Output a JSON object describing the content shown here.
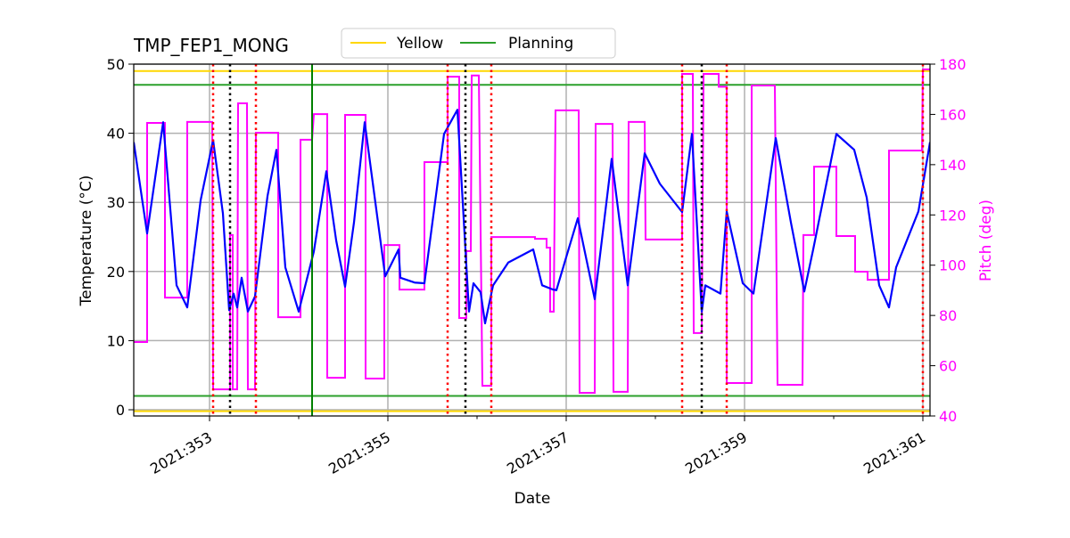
{
  "chart_data": {
    "type": "line",
    "title": "TMP_FEP1_MONG",
    "xlabel": "Date",
    "ylabel": "Temperature ($^\\circ$C)",
    "ylabel_display": "Temperature (°C)",
    "y2label": "Pitch (deg)",
    "xlim": [
      352.15,
      361.08
    ],
    "ylim": [
      -0.9,
      50
    ],
    "y2lim": [
      40,
      180
    ],
    "x_ticks": [
      353,
      355,
      357,
      359,
      361
    ],
    "x_tick_labels": [
      "2021:353",
      "2021:355",
      "2021:357",
      "2021:359",
      "2021:361"
    ],
    "x_minor_ticks": [
      354,
      356,
      358,
      360
    ],
    "y_ticks": [
      0,
      10,
      20,
      30,
      40,
      50
    ],
    "y_tick_labels": [
      "0",
      "10",
      "20",
      "30",
      "40",
      "50"
    ],
    "y2_ticks": [
      40,
      60,
      80,
      100,
      120,
      140,
      160,
      180
    ],
    "y2_tick_labels": [
      "40",
      "60",
      "80",
      "100",
      "120",
      "140",
      "160",
      "180"
    ],
    "grid": true,
    "legend": {
      "placement": "top-center",
      "entries": [
        {
          "label": "Yellow",
          "color": "#ffd700"
        },
        {
          "label": "Planning",
          "color": "#2ca02c"
        }
      ]
    },
    "colors": {
      "temperature": "#0000ff",
      "pitch": "#ff00ff",
      "yellow": "#ffd700",
      "planning": "#2ca02c",
      "event_red": "#ff0000",
      "event_black": "#000000",
      "event_green": "#008000",
      "grid": "#b0b0b0",
      "y2_axis": "#ff00ff"
    },
    "limits": {
      "yellow": [
        49,
        -0.2
      ],
      "planning": [
        47,
        2
      ]
    },
    "vertical_lines": {
      "red_dotted": [
        353.04,
        353.52,
        355.67,
        356.16,
        358.3,
        358.8,
        361.0
      ],
      "black_dotted": [
        353.23,
        355.87,
        358.52
      ],
      "green_solid": [
        354.15
      ]
    },
    "series": [
      {
        "axis": "left",
        "x": [
          352.15,
          352.3,
          352.48,
          352.63,
          352.75,
          352.9,
          353.04,
          353.15,
          353.22,
          353.27,
          353.31,
          353.36,
          353.43,
          353.51,
          353.65,
          353.75,
          353.85,
          354.0,
          354.17,
          354.31,
          354.42,
          354.52,
          354.62,
          354.74,
          354.97,
          355.12,
          355.14,
          355.3,
          355.41,
          355.63,
          355.78,
          355.91,
          355.96,
          356.04,
          356.09,
          356.18,
          356.35,
          356.63,
          356.73,
          356.85,
          356.89,
          357.13,
          357.32,
          357.51,
          357.69,
          357.88,
          358.05,
          358.3,
          358.41,
          358.52,
          358.56,
          358.73,
          358.8,
          358.98,
          359.1,
          359.35,
          359.52,
          359.67,
          359.77,
          360.03,
          360.23,
          360.37,
          360.51,
          360.62,
          360.7,
          360.95,
          361.08
        ],
        "y": [
          38.7,
          25.5,
          41.6,
          18.0,
          14.8,
          30.3,
          39.0,
          28.4,
          14.4,
          16.8,
          14.8,
          19.1,
          14.2,
          16.4,
          30.9,
          37.6,
          20.6,
          14.2,
          22.9,
          34.5,
          24.5,
          17.8,
          27.1,
          41.6,
          19.3,
          23.2,
          19.1,
          18.4,
          18.3,
          39.9,
          43.4,
          14.2,
          18.3,
          17.0,
          12.5,
          18.0,
          21.3,
          23.2,
          18.0,
          17.4,
          17.3,
          27.7,
          16.0,
          36.3,
          18.0,
          37.1,
          32.7,
          28.6,
          39.9,
          14.2,
          18.0,
          16.8,
          28.7,
          18.3,
          16.8,
          39.3,
          27.1,
          17.1,
          23.2,
          39.9,
          37.6,
          30.7,
          18.0,
          14.8,
          20.6,
          28.7,
          38.7
        ]
      },
      {
        "axis": "right",
        "steps": [
          [
            352.15,
            352.3,
            69.4
          ],
          [
            352.3,
            352.5,
            156.6
          ],
          [
            352.5,
            352.75,
            87.1
          ],
          [
            352.75,
            353.03,
            157
          ],
          [
            353.04,
            353.23,
            50.6
          ],
          [
            353.23,
            353.26,
            112
          ],
          [
            353.26,
            353.31,
            50.6
          ],
          [
            353.32,
            353.42,
            164.4
          ],
          [
            353.43,
            353.51,
            50.6
          ],
          [
            353.52,
            353.77,
            152.7
          ],
          [
            353.77,
            354.02,
            79.3
          ],
          [
            354.02,
            354.15,
            149.9
          ],
          [
            354.17,
            354.32,
            160.1
          ],
          [
            354.32,
            354.52,
            55.2
          ],
          [
            354.52,
            354.75,
            159.8
          ],
          [
            354.75,
            354.96,
            54.9
          ],
          [
            354.96,
            355.13,
            108
          ],
          [
            355.13,
            355.41,
            90.3
          ],
          [
            355.41,
            355.67,
            141
          ],
          [
            355.67,
            355.8,
            175
          ],
          [
            355.8,
            355.88,
            79
          ],
          [
            355.88,
            355.93,
            105.6
          ],
          [
            355.94,
            356.02,
            175.5
          ],
          [
            356.06,
            356.16,
            52
          ],
          [
            356.16,
            356.65,
            111.2
          ],
          [
            356.65,
            356.78,
            110.5
          ],
          [
            356.78,
            356.82,
            107
          ],
          [
            356.82,
            356.86,
            81.5
          ],
          [
            356.88,
            357.14,
            161.6
          ],
          [
            357.15,
            357.32,
            49.2
          ],
          [
            357.33,
            357.52,
            156.2
          ],
          [
            357.53,
            357.69,
            49.6
          ],
          [
            357.7,
            357.88,
            157
          ],
          [
            357.89,
            358.3,
            110.2
          ],
          [
            358.3,
            358.42,
            176.1
          ],
          [
            358.43,
            358.52,
            73
          ],
          [
            358.54,
            358.71,
            176.1
          ],
          [
            358.71,
            358.8,
            171
          ],
          [
            358.8,
            359.08,
            53.1
          ],
          [
            359.08,
            359.34,
            171.5
          ],
          [
            359.37,
            359.65,
            52.4
          ],
          [
            359.66,
            359.78,
            112
          ],
          [
            359.78,
            360.03,
            139.2
          ],
          [
            360.03,
            360.24,
            111.6
          ],
          [
            360.24,
            360.38,
            97.4
          ],
          [
            360.38,
            360.62,
            94.2
          ],
          [
            360.62,
            360.99,
            145.6
          ],
          [
            361.0,
            361.08,
            177.9
          ]
        ]
      }
    ]
  }
}
